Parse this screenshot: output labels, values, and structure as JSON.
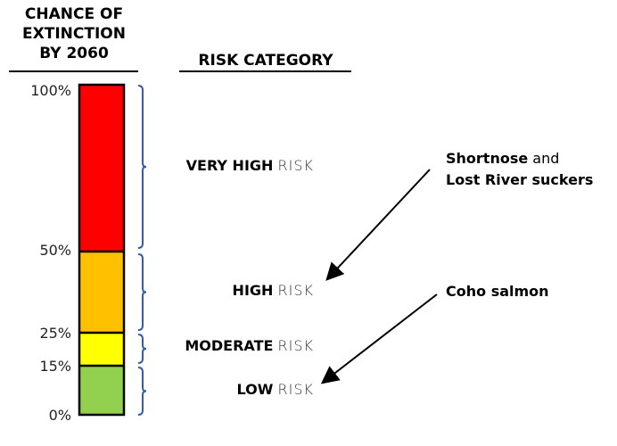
{
  "headers": {
    "chance": [
      "CHANCE OF",
      "EXTINCTION",
      "BY 2060"
    ],
    "risk": "RISK CATEGORY"
  },
  "ticks": [
    "100%",
    "50%",
    "25%",
    "15%",
    "0%"
  ],
  "bands": [
    {
      "range": [
        50,
        100
      ],
      "color": "#ff0000",
      "label_bold": "VERY HIGH",
      "label_light": "RISK"
    },
    {
      "range": [
        25,
        50
      ],
      "color": "#ffc000",
      "label_bold": "HIGH",
      "label_light": "RISK"
    },
    {
      "range": [
        15,
        25
      ],
      "color": "#ffff00",
      "label_bold": "MODERATE",
      "label_light": "RISK"
    },
    {
      "range": [
        0,
        15
      ],
      "color": "#92d050",
      "label_bold": "LOW",
      "label_light": "RISK"
    }
  ],
  "brace_color": "#2f5fa8",
  "annotations": [
    {
      "line1_bold": "Shortnose",
      "line1_normal": " and",
      "line2": "Lost River suckers",
      "points_to": "HIGH"
    },
    {
      "line1_bold": "Coho salmon",
      "line1_normal": "",
      "line2": "",
      "points_to": "LOW"
    }
  ]
}
